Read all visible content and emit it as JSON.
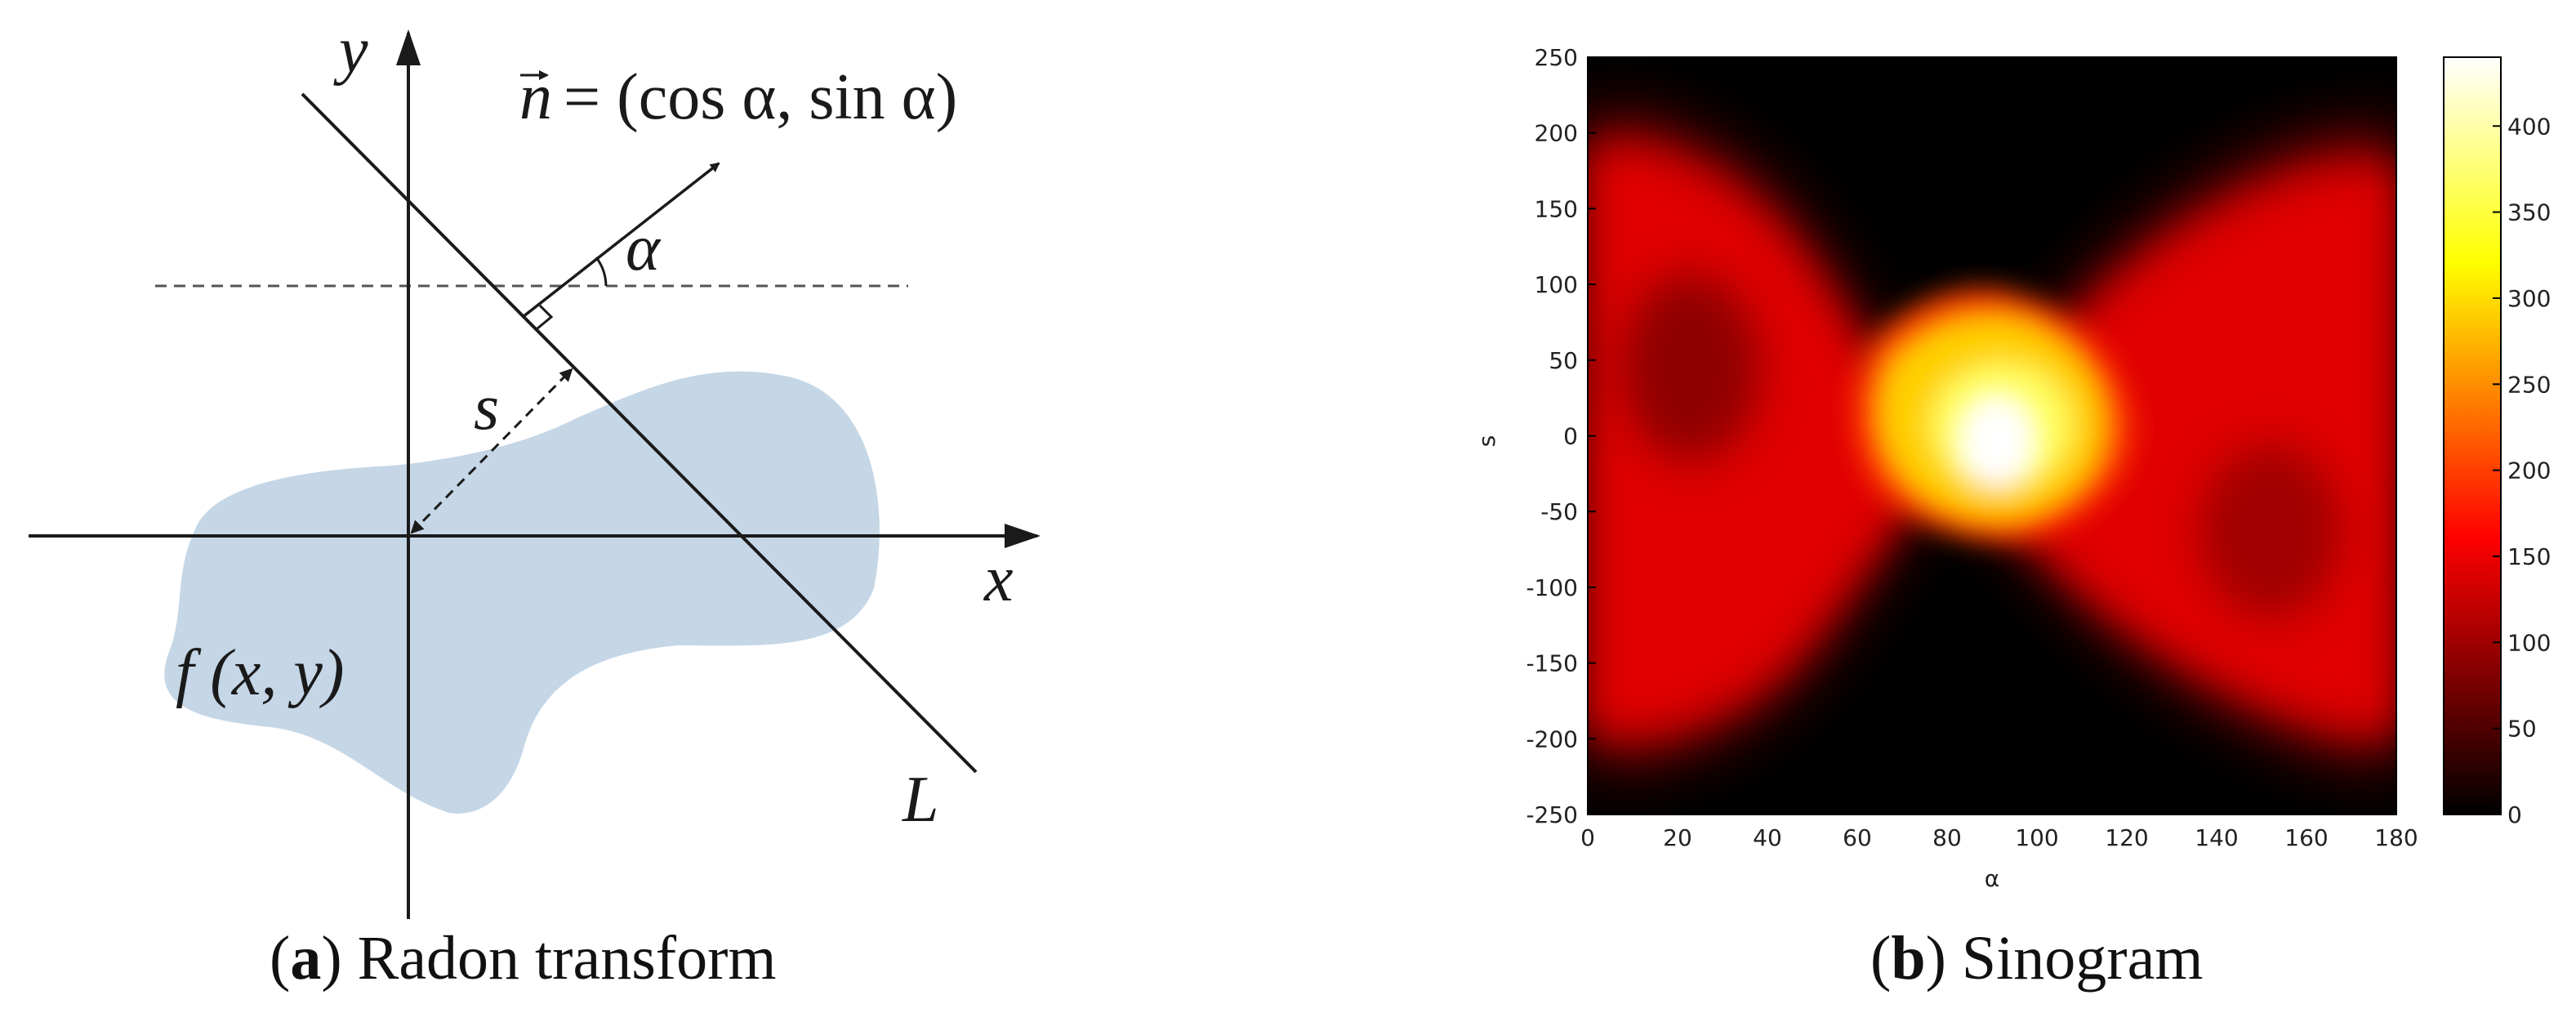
{
  "panel_a": {
    "caption_letter": "a",
    "caption_text": "Radon transform",
    "labels": {
      "y_axis": "y",
      "x_axis": "x",
      "normal": "n",
      "normal_eq": "= (cos α, sin α)",
      "alpha": "α",
      "s": "s",
      "line": "L",
      "function": "f (x, y)"
    },
    "colors": {
      "region": "#c5d6e6",
      "ink": "#1a1a1a"
    }
  },
  "panel_b": {
    "caption_letter": "b",
    "caption_text": "Sinogram",
    "colorbar_ticks": [
      "0",
      "50",
      "100",
      "150",
      "200",
      "250",
      "300",
      "350",
      "400"
    ]
  },
  "chart_data": {
    "type": "heatmap",
    "title": "",
    "xlabel": "α",
    "ylabel": "s",
    "xlim": [
      0,
      180
    ],
    "ylim": [
      -250,
      250
    ],
    "xticks": [
      0,
      20,
      40,
      60,
      80,
      100,
      120,
      140,
      160,
      180
    ],
    "yticks": [
      250,
      200,
      150,
      100,
      50,
      0,
      -50,
      -100,
      -150,
      -200,
      -250
    ],
    "colormap": "hot",
    "clim": [
      0,
      440
    ],
    "colorbar_ticks": [
      0,
      50,
      100,
      150,
      200,
      250,
      300,
      350,
      400
    ],
    "features": {
      "bright_peak": {
        "alpha": 100,
        "s": 10,
        "value": 440
      },
      "crossings": [
        {
          "alpha": 104,
          "s": 90
        },
        {
          "alpha": 100,
          "s": -62
        }
      ]
    }
  }
}
